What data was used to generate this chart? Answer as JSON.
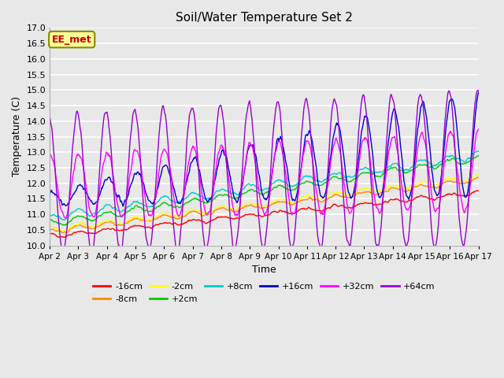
{
  "title": "Soil/Water Temperature Set 2",
  "xlabel": "Time",
  "ylabel": "Temperature (C)",
  "ylim": [
    10.0,
    17.0
  ],
  "yticks": [
    10.0,
    10.5,
    11.0,
    11.5,
    12.0,
    12.5,
    13.0,
    13.5,
    14.0,
    14.5,
    15.0,
    15.5,
    16.0,
    16.5,
    17.0
  ],
  "xtick_labels": [
    "Apr 2",
    "Apr 3",
    "Apr 4",
    "Apr 5",
    "Apr 6",
    "Apr 7",
    "Apr 8",
    "Apr 9",
    "Apr 10",
    "Apr 11",
    "Apr 12",
    "Apr 13",
    "Apr 14",
    "Apr 15",
    "Apr 16",
    "Apr 17"
  ],
  "series": [
    {
      "label": "-16cm",
      "color": "#ff0000"
    },
    {
      "label": "-8cm",
      "color": "#ff8800"
    },
    {
      "label": "-2cm",
      "color": "#ffff00"
    },
    {
      "label": "+2cm",
      "color": "#00cc00"
    },
    {
      "label": "+8cm",
      "color": "#00cccc"
    },
    {
      "label": "+16cm",
      "color": "#0000cc"
    },
    {
      "label": "+32cm",
      "color": "#ff00ff"
    },
    {
      "label": "+64cm",
      "color": "#9900cc"
    }
  ],
  "annotation_text": "EE_met",
  "annotation_color": "#cc0000",
  "annotation_bg": "#ffff99",
  "annotation_border": "#888800",
  "bg_color": "#e8e8e8",
  "plot_bg_color": "#e8e8e8",
  "grid_color": "#ffffff",
  "n_days": 15,
  "points_per_day": 48,
  "figwidth": 6.4,
  "figheight": 4.8,
  "dpi": 100
}
